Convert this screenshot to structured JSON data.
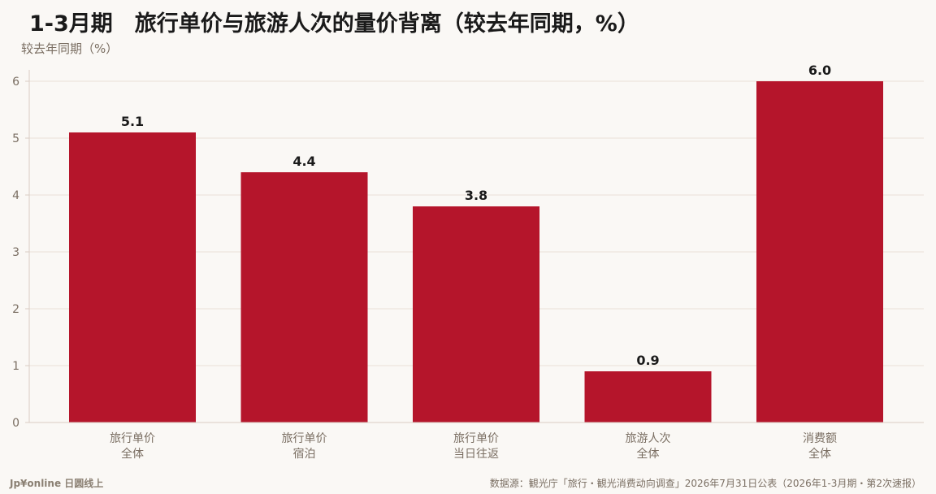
{
  "chart_data": {
    "type": "bar",
    "title": "1-3月期　旅行单价与旅游人次的量价背离（较去年同期，%）",
    "ylabel": "较去年同期（%）",
    "xlabel": "",
    "categories": [
      [
        "旅行单价",
        "全体"
      ],
      [
        "旅行单价",
        "宿泊"
      ],
      [
        "旅行单价",
        "当日往返"
      ],
      [
        "旅游人次",
        "全体"
      ],
      [
        "消费额",
        "全体"
      ]
    ],
    "values": [
      5.1,
      4.4,
      3.8,
      0.9,
      6.0
    ],
    "value_labels": [
      "5.1",
      "4.4",
      "3.8",
      "0.9",
      "6.0"
    ],
    "ylim": [
      0,
      6.2
    ],
    "yticks": [
      0,
      1,
      2,
      3,
      4,
      5,
      6
    ],
    "grid": true,
    "legend": "none",
    "colors": {
      "bar": "#b5152b",
      "background": "#faf8f5"
    }
  },
  "footer": {
    "brand": "Jp¥online 日圆线上",
    "source": "数据源：観光庁「旅行・観光消费动向调查」2026年7月31日公表（2026年1-3月期・第2次速报）"
  }
}
